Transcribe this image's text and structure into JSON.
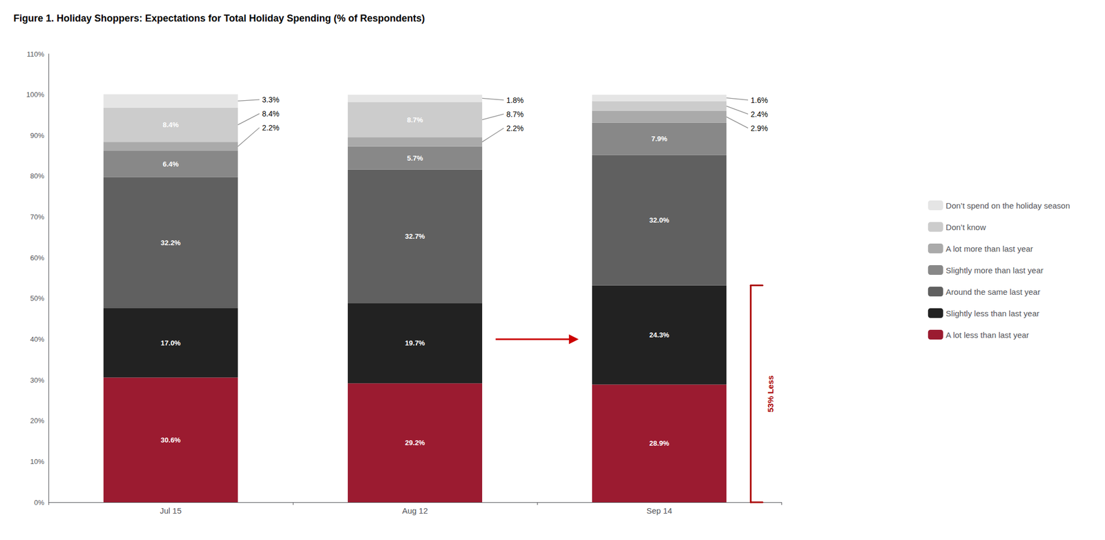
{
  "chart_data": {
    "type": "bar",
    "title": "Figure 1. Holiday Shoppers: Expectations for Total Holiday Spending (% of Respondents)",
    "categories": [
      "Jul 15",
      "Aug 12",
      "Sep 14"
    ],
    "series": [
      {
        "name": "A lot less than last year",
        "color": "#9B1B30",
        "values": [
          30.6,
          29.2,
          28.9
        ],
        "value_labels": [
          "30.6%",
          "29.2%",
          "28.9%"
        ]
      },
      {
        "name": "Slightly less than last year",
        "color": "#222222",
        "values": [
          17.0,
          19.7,
          24.3
        ],
        "value_labels": [
          "17.0%",
          "19.7%",
          "24.3%"
        ]
      },
      {
        "name": "Around the same last year",
        "color": "#606060",
        "values": [
          32.2,
          32.7,
          32.0
        ],
        "value_labels": [
          "32.2%",
          "32.7%",
          "32.0%"
        ]
      },
      {
        "name": "Slightly more than last year",
        "color": "#888888",
        "values": [
          6.4,
          5.7,
          7.9
        ],
        "value_labels": [
          "6.4%",
          "5.7%",
          "7.9%"
        ]
      },
      {
        "name": "A lot more than last year",
        "color": "#AAAAAA",
        "values": [
          2.2,
          2.2,
          2.9
        ],
        "value_labels": [
          "2.2%",
          "2.2%",
          "2.9%"
        ]
      },
      {
        "name": "Don’t know",
        "color": "#CCCCCC",
        "values": [
          8.4,
          8.7,
          2.4
        ],
        "value_labels": [
          "8.4%",
          "8.7%",
          "2.4%"
        ]
      },
      {
        "name": "Don’t spend on the holiday season",
        "color": "#E5E5E5",
        "values": [
          3.3,
          1.8,
          1.6
        ],
        "value_labels": [
          "3.3%",
          "1.8%",
          "1.6%"
        ]
      }
    ],
    "stacked": true,
    "data_labels": true,
    "ylim": [
      0,
      110
    ],
    "yticks": [
      {
        "value": 0,
        "label": "0%"
      },
      {
        "value": 10,
        "label": "10%"
      },
      {
        "value": 20,
        "label": "20%"
      },
      {
        "value": 30,
        "label": "30%"
      },
      {
        "value": 40,
        "label": "40%"
      },
      {
        "value": 50,
        "label": "50%"
      },
      {
        "value": 60,
        "label": "60%"
      },
      {
        "value": 70,
        "label": "70%"
      },
      {
        "value": 80,
        "label": "80%"
      },
      {
        "value": 90,
        "label": "90%"
      },
      {
        "value": 100,
        "label": "100%"
      },
      {
        "value": 110,
        "label": "110%"
      }
    ],
    "grid": false,
    "legend": "right",
    "annotations": [
      {
        "text": "53% Less",
        "category": "Sep 14",
        "y_range": [
          0,
          53.2
        ],
        "color": "#AA0000"
      },
      {
        "from": "Aug 12",
        "to": "Sep 14",
        "y": 40,
        "color": "#CC0000"
      }
    ]
  }
}
